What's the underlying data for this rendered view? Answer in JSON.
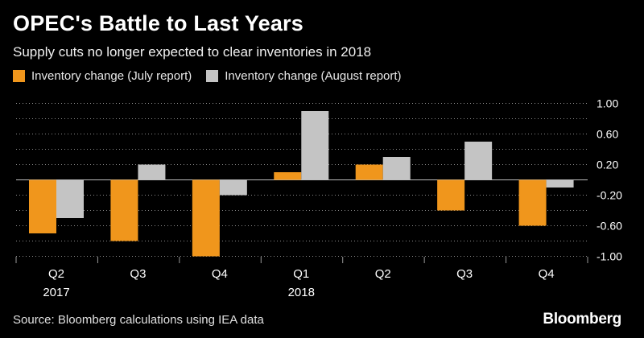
{
  "title": "OPEC's Battle to Last Years",
  "subtitle": "Supply cuts no longer expected to clear inventories in 2018",
  "source": "Source: Bloomberg calculations using IEA data",
  "brand": "Bloomberg",
  "colors": {
    "july": "#f0961c",
    "august": "#c4c4c4",
    "grid": "#8a8a8a",
    "background": "#000000"
  },
  "chart_data": {
    "type": "bar",
    "categories": [
      "Q2",
      "Q3",
      "Q4",
      "Q1",
      "Q2",
      "Q3",
      "Q4"
    ],
    "year_labels": [
      "2017",
      "",
      "",
      "2018",
      "",
      "",
      ""
    ],
    "series": [
      {
        "name": "Inventory change (July report)",
        "values": [
          -0.7,
          -0.8,
          -1.0,
          0.1,
          0.2,
          -0.4,
          -0.6
        ]
      },
      {
        "name": "Inventory change (August report)",
        "values": [
          -0.5,
          0.2,
          -0.2,
          0.9,
          0.3,
          0.5,
          -0.1
        ]
      }
    ],
    "yticks": [
      "1.00",
      "0.60",
      "0.20",
      "-0.20",
      "-0.60",
      "-1.00"
    ],
    "ylim": [
      -1.0,
      1.0
    ],
    "legend_position": "top-left",
    "y_axis_side": "right",
    "grid": true
  }
}
